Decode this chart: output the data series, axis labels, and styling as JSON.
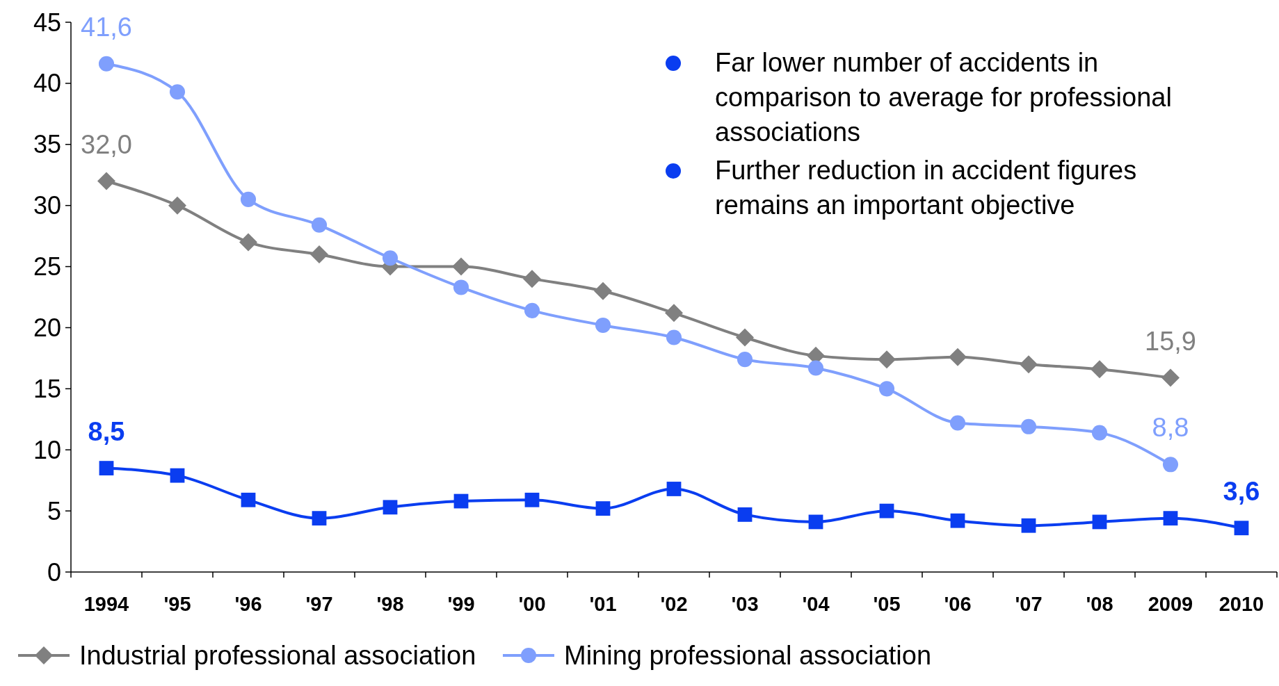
{
  "chart_data": {
    "type": "line",
    "categories": [
      "1994",
      "'95",
      "'96",
      "'97",
      "'98",
      "'99",
      "'00",
      "'01",
      "'02",
      "'03",
      "'04",
      "'05",
      "'06",
      "'07",
      "'08",
      "2009",
      "2010"
    ],
    "ylim": [
      0,
      45
    ],
    "yticks": [
      0,
      5,
      10,
      15,
      20,
      25,
      30,
      35,
      40,
      45
    ],
    "grid": false,
    "legend": "bottom",
    "series": [
      {
        "name": "Industrial professional association",
        "color": "#808080",
        "marker": "diamond",
        "values": [
          32.0,
          30.0,
          27.0,
          26.0,
          25.0,
          25.0,
          24.0,
          23.0,
          21.2,
          19.2,
          17.7,
          17.4,
          17.6,
          17.0,
          16.6,
          15.9,
          null
        ],
        "value_labels": [
          "32,0",
          null,
          null,
          null,
          null,
          null,
          null,
          null,
          null,
          null,
          null,
          null,
          null,
          null,
          null,
          "15,9",
          null
        ]
      },
      {
        "name": "Mining professional association",
        "color": "#7f9ffd",
        "marker": "circle",
        "values": [
          41.6,
          39.3,
          30.5,
          28.4,
          25.7,
          23.3,
          21.4,
          20.2,
          19.2,
          17.4,
          16.7,
          15.0,
          12.2,
          11.9,
          11.4,
          8.8,
          null
        ],
        "value_labels": [
          "41,6",
          null,
          null,
          null,
          null,
          null,
          null,
          null,
          null,
          null,
          null,
          null,
          null,
          null,
          null,
          "8,8",
          null
        ]
      },
      {
        "color": "#0a3df0",
        "marker": "square",
        "values": [
          8.5,
          7.9,
          5.9,
          4.4,
          5.3,
          5.8,
          5.9,
          5.2,
          6.8,
          4.7,
          4.1,
          5.0,
          4.2,
          3.8,
          4.1,
          4.4,
          3.6
        ],
        "value_labels": [
          "8,5",
          null,
          null,
          null,
          null,
          null,
          null,
          null,
          null,
          null,
          null,
          null,
          null,
          null,
          null,
          null,
          "3,6"
        ]
      }
    ],
    "annotations": [
      "Far lower number of accidents in comparison to average for professional associations",
      "Further reduction in accident figures remains an important objective"
    ]
  }
}
